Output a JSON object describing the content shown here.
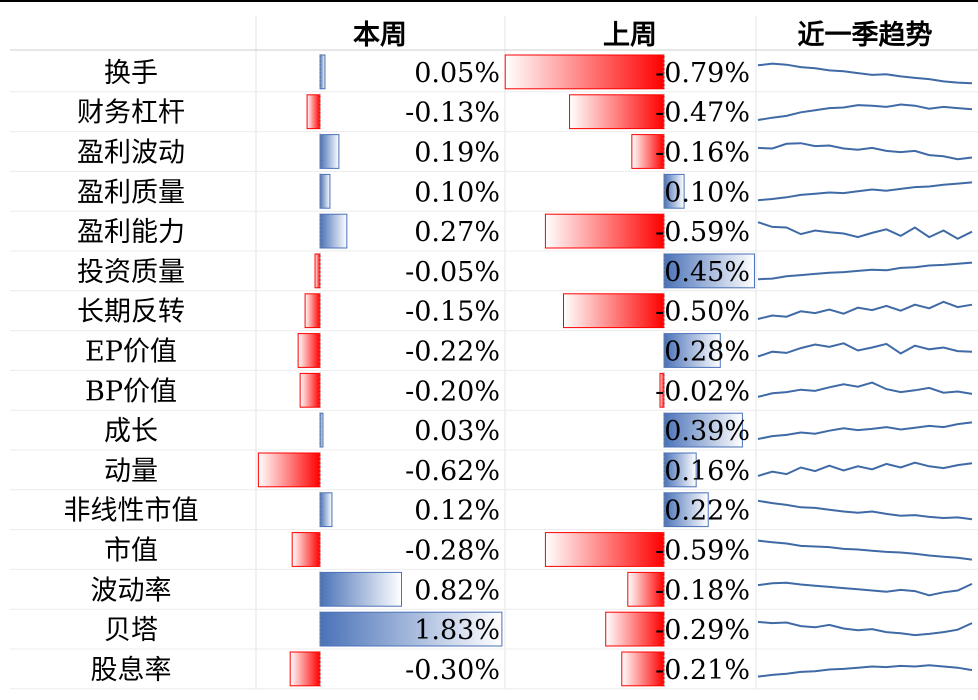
{
  "chart_data": {
    "type": "table",
    "columns": [
      "",
      "本周",
      "上周",
      "近一季趋势"
    ],
    "factors": [
      "换手",
      "财务杠杆",
      "盈利波动",
      "盈利质量",
      "盈利能力",
      "投资质量",
      "长期反转",
      "EP价值",
      "BP价值",
      "成长",
      "动量",
      "非线性市值",
      "市值",
      "波动率",
      "贝塔",
      "股息率"
    ],
    "this_week": [
      0.05,
      -0.13,
      0.19,
      0.1,
      0.27,
      -0.05,
      -0.15,
      -0.22,
      -0.2,
      0.03,
      -0.62,
      0.12,
      -0.28,
      0.82,
      1.83,
      -0.3
    ],
    "this_week_labels": [
      "0.05%",
      "-0.13%",
      "0.19%",
      "0.10%",
      "0.27%",
      "-0.05%",
      "-0.15%",
      "-0.22%",
      "-0.20%",
      "0.03%",
      "-0.62%",
      "0.12%",
      "-0.28%",
      "0.82%",
      "1.83%",
      "-0.30%"
    ],
    "last_week": [
      -0.79,
      -0.47,
      -0.16,
      0.1,
      -0.59,
      0.45,
      -0.5,
      0.28,
      -0.02,
      0.39,
      0.16,
      0.22,
      -0.59,
      -0.18,
      -0.29,
      -0.21
    ],
    "last_week_labels": [
      "-0.79%",
      "-0.47%",
      "-0.16%",
      "0.10%",
      "-0.59%",
      "0.45%",
      "-0.50%",
      "0.28%",
      "-0.02%",
      "0.39%",
      "0.16%",
      "0.22%",
      "-0.59%",
      "-0.18%",
      "-0.29%",
      "-0.21%"
    ],
    "trend": [
      [
        0.72,
        0.78,
        0.74,
        0.66,
        0.62,
        0.55,
        0.52,
        0.46,
        0.4,
        0.42,
        0.35,
        0.3,
        0.26,
        0.18,
        0.14,
        0.12
      ],
      [
        0.22,
        0.3,
        0.36,
        0.48,
        0.55,
        0.62,
        0.64,
        0.72,
        0.7,
        0.66,
        0.74,
        0.7,
        0.6,
        0.66,
        0.62,
        0.58
      ],
      [
        0.62,
        0.6,
        0.76,
        0.78,
        0.68,
        0.7,
        0.6,
        0.56,
        0.62,
        0.52,
        0.48,
        0.52,
        0.38,
        0.34,
        0.24,
        0.3
      ],
      [
        0.2,
        0.24,
        0.3,
        0.38,
        0.42,
        0.46,
        0.44,
        0.5,
        0.56,
        0.52,
        0.58,
        0.64,
        0.66,
        0.72,
        0.76,
        0.8
      ],
      [
        0.8,
        0.64,
        0.62,
        0.4,
        0.52,
        0.46,
        0.42,
        0.3,
        0.44,
        0.56,
        0.34,
        0.62,
        0.3,
        0.52,
        0.24,
        0.48
      ],
      [
        0.22,
        0.24,
        0.32,
        0.36,
        0.4,
        0.44,
        0.46,
        0.5,
        0.54,
        0.52,
        0.6,
        0.62,
        0.68,
        0.7,
        0.74,
        0.78
      ],
      [
        0.22,
        0.34,
        0.3,
        0.48,
        0.42,
        0.54,
        0.4,
        0.6,
        0.52,
        0.66,
        0.5,
        0.7,
        0.58,
        0.8,
        0.62,
        0.7
      ],
      [
        0.3,
        0.46,
        0.42,
        0.58,
        0.7,
        0.62,
        0.74,
        0.5,
        0.6,
        0.72,
        0.4,
        0.66,
        0.54,
        0.6,
        0.48,
        0.46
      ],
      [
        0.28,
        0.4,
        0.44,
        0.52,
        0.48,
        0.6,
        0.7,
        0.62,
        0.76,
        0.54,
        0.44,
        0.5,
        0.58,
        0.42,
        0.46,
        0.38
      ],
      [
        0.2,
        0.3,
        0.34,
        0.42,
        0.38,
        0.48,
        0.56,
        0.5,
        0.54,
        0.6,
        0.52,
        0.58,
        0.64,
        0.6,
        0.7,
        0.76
      ],
      [
        0.3,
        0.44,
        0.36,
        0.58,
        0.46,
        0.64,
        0.48,
        0.62,
        0.52,
        0.7,
        0.58,
        0.74,
        0.62,
        0.56,
        0.66,
        0.72
      ],
      [
        0.8,
        0.72,
        0.66,
        0.58,
        0.56,
        0.5,
        0.44,
        0.4,
        0.44,
        0.36,
        0.3,
        0.32,
        0.26,
        0.22,
        0.24,
        0.18
      ],
      [
        0.8,
        0.74,
        0.7,
        0.62,
        0.6,
        0.58,
        0.52,
        0.5,
        0.46,
        0.42,
        0.4,
        0.36,
        0.3,
        0.26,
        0.22,
        0.16
      ],
      [
        0.64,
        0.7,
        0.72,
        0.66,
        0.62,
        0.58,
        0.54,
        0.5,
        0.46,
        0.42,
        0.48,
        0.44,
        0.3,
        0.4,
        0.46,
        0.68
      ],
      [
        0.74,
        0.7,
        0.72,
        0.6,
        0.56,
        0.64,
        0.52,
        0.46,
        0.5,
        0.4,
        0.36,
        0.3,
        0.34,
        0.4,
        0.48,
        0.7
      ],
      [
        0.24,
        0.3,
        0.34,
        0.4,
        0.42,
        0.48,
        0.5,
        0.54,
        0.58,
        0.56,
        0.6,
        0.58,
        0.62,
        0.58,
        0.54,
        0.46
      ]
    ],
    "colors": {
      "positive": "#4a72b8",
      "negative": "#ff0000",
      "trend_line": "#3f6aa6",
      "grid": "#d9d9d9"
    }
  }
}
